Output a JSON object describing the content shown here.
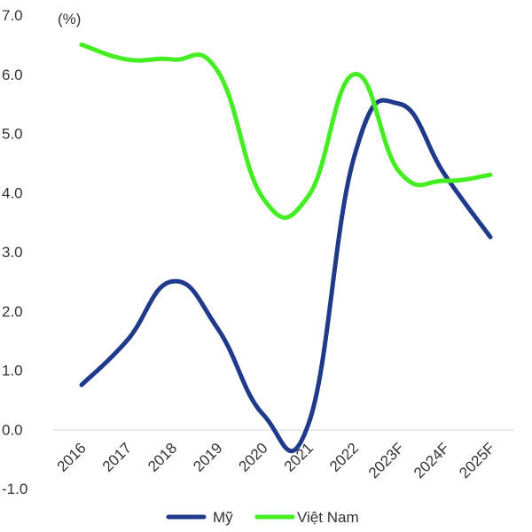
{
  "chart_data": {
    "type": "line",
    "unit_label": "(%)",
    "categories": [
      "2016",
      "2017",
      "2018",
      "2019",
      "2020",
      "2021",
      "2022",
      "2023F",
      "2024F",
      "2025F"
    ],
    "series": [
      {
        "name": "Mỹ",
        "color": "#1f3a8a",
        "values": [
          0.75,
          1.5,
          2.5,
          1.7,
          0.25,
          0.1,
          4.6,
          5.5,
          4.3,
          3.25
        ]
      },
      {
        "name": "Việt Nam",
        "color": "#44ee22",
        "values": [
          6.5,
          6.25,
          6.25,
          6.05,
          3.9,
          3.95,
          6.0,
          4.35,
          4.2,
          4.3
        ]
      }
    ],
    "ylim": [
      -1.0,
      7.0
    ],
    "yticks": [
      "7.0",
      "6.0",
      "5.0",
      "4.0",
      "3.0",
      "2.0",
      "1.0",
      "0.0",
      "-1.0"
    ],
    "ytick_values": [
      7,
      6,
      5,
      4,
      3,
      2,
      1,
      0,
      -1
    ],
    "grid": false,
    "legend_position": "bottom"
  }
}
